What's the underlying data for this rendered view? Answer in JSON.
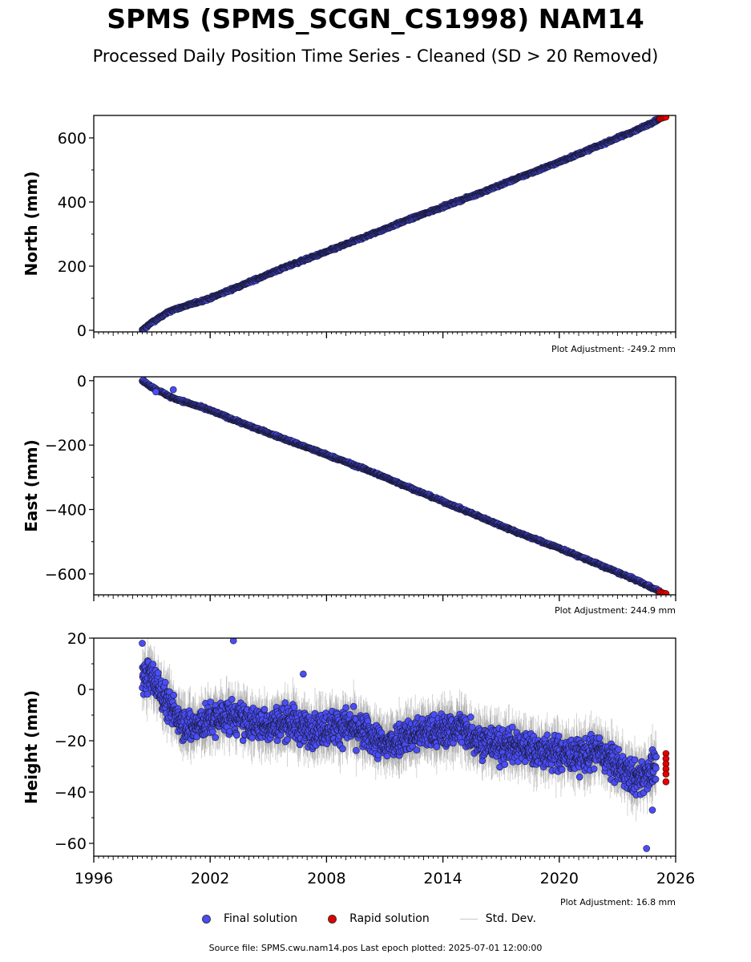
{
  "header": {
    "title": "SPMS (SPMS_SCGN_CS1998) NAM14",
    "subtitle": "Processed Daily Position Time Series - Cleaned (SD > 20 Removed)"
  },
  "footer": {
    "source": "Source file: SPMS.cwu.nam14.pos  Last epoch plotted: 2025-07-01 12:00:00"
  },
  "legend": {
    "final": "Final solution",
    "rapid": "Rapid solution",
    "std": "Std. Dev."
  },
  "colors": {
    "final": "#4a4df5",
    "rapid": "#e10000",
    "std": "#9a9a9a"
  },
  "chart_data": [
    {
      "type": "scatter",
      "ylabel": "North (mm)",
      "adjustment": "Plot Adjustment: -249.2 mm",
      "xlim": [
        1996,
        2026
      ],
      "ylim": [
        -5,
        670
      ],
      "yticks": [
        0,
        200,
        400,
        600
      ],
      "xticks": [
        1996,
        2002,
        2008,
        2014,
        2020,
        2026
      ],
      "x": [
        1998.5,
        1999.0,
        2000.0,
        2002.0,
        2004.0,
        2006.0,
        2008.0,
        2010.0,
        2012.0,
        2014.0,
        2016.0,
        2018.0,
        2020.0,
        2022.0,
        2024.0,
        2025.2
      ],
      "y": [
        0,
        25,
        62,
        100,
        150,
        200,
        245,
        292,
        340,
        385,
        430,
        478,
        525,
        575,
        625,
        660
      ],
      "rapid_x": [
        2025.2,
        2025.3,
        2025.4,
        2025.5
      ],
      "rapid_y": [
        660,
        662,
        664,
        665
      ]
    },
    {
      "type": "scatter",
      "ylabel": "East (mm)",
      "adjustment": "Plot Adjustment: 244.9 mm",
      "xlim": [
        1996,
        2026
      ],
      "ylim": [
        -665,
        12
      ],
      "yticks": [
        0,
        -200,
        -400,
        -600
      ],
      "xticks": [
        1996,
        2002,
        2008,
        2014,
        2020,
        2026
      ],
      "x": [
        1998.5,
        1999.0,
        2000.0,
        2002.0,
        2004.0,
        2006.0,
        2008.0,
        2010.0,
        2012.0,
        2014.0,
        2016.0,
        2018.0,
        2020.0,
        2022.0,
        2024.0,
        2025.2
      ],
      "y": [
        0,
        -20,
        -52,
        -92,
        -140,
        -185,
        -230,
        -275,
        -325,
        -375,
        -425,
        -475,
        -520,
        -570,
        -620,
        -655
      ],
      "outlier_x": [
        1999.2,
        2000.1
      ],
      "outlier_y": [
        -35,
        -28
      ],
      "rapid_x": [
        2025.2,
        2025.3,
        2025.4,
        2025.5
      ],
      "rapid_y": [
        -656,
        -658,
        -660,
        -661
      ]
    },
    {
      "type": "scatter",
      "ylabel": "Height (mm)",
      "adjustment": "Plot Adjustment: 16.8 mm",
      "xlim": [
        1996,
        2026
      ],
      "ylim": [
        -65,
        20
      ],
      "yticks": [
        20,
        0,
        -20,
        -40,
        -60
      ],
      "xticks": [
        1996,
        2002,
        2008,
        2014,
        2020,
        2026
      ],
      "x": [
        1998.5,
        1999.0,
        2000.0,
        2001.0,
        2002.0,
        2003.0,
        2004.0,
        2005.0,
        2006.0,
        2007.0,
        2008.0,
        2009.0,
        2010.0,
        2011.0,
        2012.0,
        2013.0,
        2014.0,
        2015.0,
        2016.0,
        2017.0,
        2018.0,
        2019.0,
        2020.0,
        2021.0,
        2022.0,
        2023.0,
        2024.0,
        2025.0
      ],
      "y": [
        5,
        5,
        -8,
        -15,
        -12,
        -10,
        -13,
        -14,
        -12,
        -16,
        -15,
        -14,
        -17,
        -22,
        -18,
        -17,
        -16,
        -15,
        -20,
        -22,
        -22,
        -24,
        -25,
        -26,
        -24,
        -30,
        -35,
        -30
      ],
      "outlier_x": [
        1998.5,
        2003.2,
        2006.8,
        2024.5,
        2024.8
      ],
      "outlier_y": [
        18,
        19,
        6,
        -62,
        -47
      ],
      "rapid_x": [
        2025.5,
        2025.5,
        2025.5,
        2025.5,
        2025.5,
        2025.5
      ],
      "rapid_y": [
        -25,
        -27,
        -29,
        -31,
        -33,
        -36
      ]
    }
  ]
}
